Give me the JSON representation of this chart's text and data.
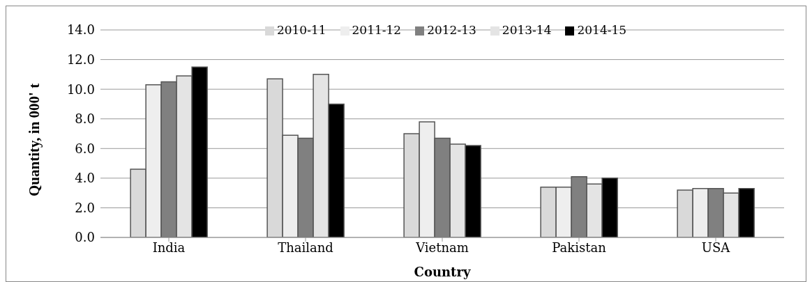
{
  "chart_data": {
    "type": "bar",
    "xlabel": "Country",
    "ylabel": "Quantity, in 000' t",
    "categories": [
      "India",
      "Thailand",
      "Vietnam",
      "Pakistan",
      "USA"
    ],
    "series": [
      {
        "name": "2010-11",
        "color": "#d9d9d9",
        "values": [
          4.6,
          10.7,
          7.0,
          3.4,
          3.2
        ]
      },
      {
        "name": "2011-12",
        "color": "#eeeeee",
        "values": [
          10.3,
          6.9,
          7.8,
          3.4,
          3.3
        ]
      },
      {
        "name": "2012-13",
        "color": "#808080",
        "values": [
          10.5,
          6.7,
          6.7,
          4.1,
          3.3
        ]
      },
      {
        "name": "2013-14",
        "color": "#e4e4e4",
        "values": [
          10.9,
          11.0,
          6.3,
          3.6,
          3.0
        ]
      },
      {
        "name": "2014-15",
        "color": "#000000",
        "values": [
          11.5,
          9.0,
          6.2,
          4.0,
          3.3
        ]
      }
    ],
    "ylim": [
      0,
      14
    ],
    "yticks": [
      {
        "value": 0,
        "label": "0.0"
      },
      {
        "value": 2,
        "label": "2.0"
      },
      {
        "value": 4,
        "label": "4.0"
      },
      {
        "value": 6,
        "label": "6.0"
      },
      {
        "value": 8,
        "label": "8.0"
      },
      {
        "value": 10,
        "label": "10.0"
      },
      {
        "value": 12,
        "label": "12.0"
      },
      {
        "value": 14,
        "label": "14.0"
      }
    ],
    "grid": "y",
    "legend": "top"
  }
}
